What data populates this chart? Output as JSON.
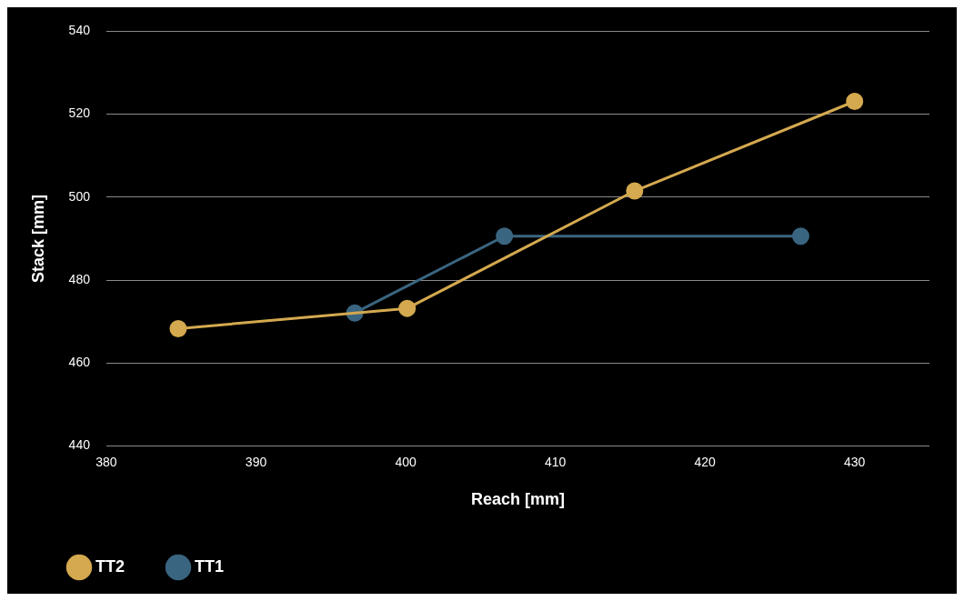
{
  "chart_data": {
    "type": "line",
    "xlabel": "Reach [mm]",
    "ylabel": "Stack [mm]",
    "xlim": [
      380,
      435
    ],
    "xticks": [
      380,
      390,
      400,
      410,
      420,
      430
    ],
    "ylim": [
      440,
      540
    ],
    "yticks": [
      440,
      460,
      480,
      500,
      520,
      540
    ],
    "grid": "y",
    "legend": "bottom left",
    "marker": "circle",
    "line_style": "solid",
    "series": [
      {
        "name": "TT2",
        "color": "#d4a94f",
        "x": [
          384.8,
          400.1,
          415.3,
          430
        ],
        "values": [
          468.3,
          473.2,
          501.5,
          523.1
        ]
      },
      {
        "name": "TT1",
        "color": "#3a6580",
        "x": [
          396.6,
          406.6,
          426.4
        ],
        "values": [
          472.1,
          490.6,
          490.6
        ]
      }
    ]
  }
}
